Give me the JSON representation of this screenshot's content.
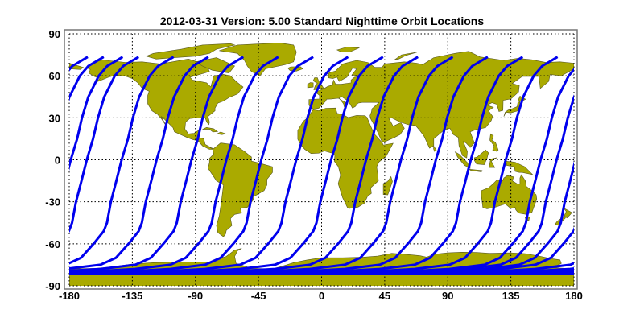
{
  "title": "2012-03-31    Version: 5.00  Standard    Nighttime Orbit Locations",
  "chart_data": {
    "type": "map",
    "projection": "equirectangular",
    "title": "2012-03-31    Version: 5.00  Standard    Nighttime Orbit Locations",
    "xlim": [
      -180,
      180
    ],
    "ylim": [
      -90,
      90
    ],
    "x_ticks": [
      "-180",
      "-135",
      "-90",
      "-45",
      "0",
      "45",
      "90",
      "135",
      "180"
    ],
    "y_ticks": [
      "90",
      "60",
      "30",
      "0",
      "-30",
      "-60",
      "-90"
    ],
    "x_tick_values": [
      -180,
      -135,
      -90,
      -45,
      0,
      45,
      90,
      135,
      180
    ],
    "y_tick_values": [
      90,
      60,
      30,
      0,
      -30,
      -60,
      -90
    ],
    "grid": true,
    "grid_style": "dotted",
    "orbit_tracks": {
      "direction": "south-to-north",
      "lat_range": [
        -81.5,
        73.5
      ],
      "equator_crossing_lon": [
        -192.4,
        -167.5,
        -142.6,
        -117.7,
        -92.8,
        -67.9,
        -43.0,
        -18.1,
        6.8,
        31.7,
        56.6,
        81.5,
        106.4,
        131.3,
        156.2,
        181.1
      ]
    },
    "colors": {
      "land": "#aaaa00",
      "coast": "#5a5a20",
      "orbit": "#0000ee",
      "frame": "#777777"
    }
  }
}
